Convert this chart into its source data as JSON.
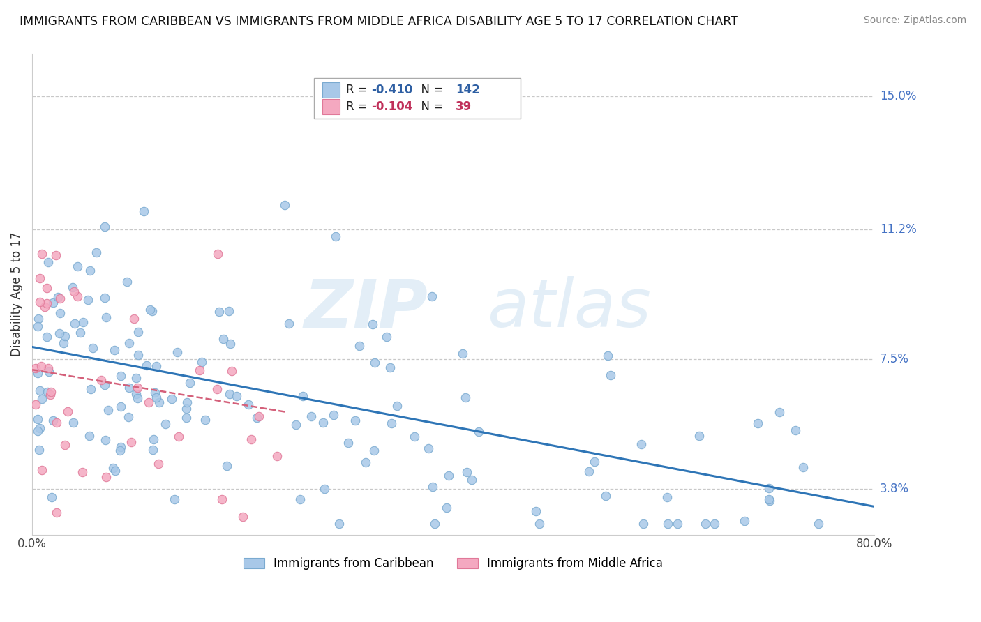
{
  "title": "IMMIGRANTS FROM CARIBBEAN VS IMMIGRANTS FROM MIDDLE AFRICA DISABILITY AGE 5 TO 17 CORRELATION CHART",
  "source": "Source: ZipAtlas.com",
  "ylabel": "Disability Age 5 to 17",
  "xlim": [
    0.0,
    0.8
  ],
  "ylim": [
    0.025,
    0.162
  ],
  "yticks": [
    0.038,
    0.075,
    0.112,
    0.15
  ],
  "ytick_labels": [
    "3.8%",
    "7.5%",
    "11.2%",
    "15.0%"
  ],
  "xticks": [
    0.0,
    0.8
  ],
  "xtick_labels": [
    "0.0%",
    "80.0%"
  ],
  "legend1_r": "-0.410",
  "legend1_n": "142",
  "legend2_r": "-0.104",
  "legend2_n": "39",
  "legend_label1": "Immigrants from Caribbean",
  "legend_label2": "Immigrants from Middle Africa",
  "color_blue_fill": "#A8C8E8",
  "color_blue_edge": "#7AAAD0",
  "color_pink_fill": "#F4A8C0",
  "color_pink_edge": "#E07898",
  "color_blue_line": "#2E75B6",
  "color_pink_line": "#D4607A",
  "color_ytick": "#4472C4",
  "color_legend_r1": "#2E5FA3",
  "color_legend_r2": "#C0305A",
  "color_legend_n1": "#2E5FA3",
  "color_legend_n2": "#C0305A",
  "watermark_zip_color": "#D8E8F4",
  "watermark_atlas_color": "#D8E8F4",
  "blue_line_y0": 0.0785,
  "blue_line_y1": 0.033,
  "pink_line_y0": 0.072,
  "pink_line_y1": 0.06
}
